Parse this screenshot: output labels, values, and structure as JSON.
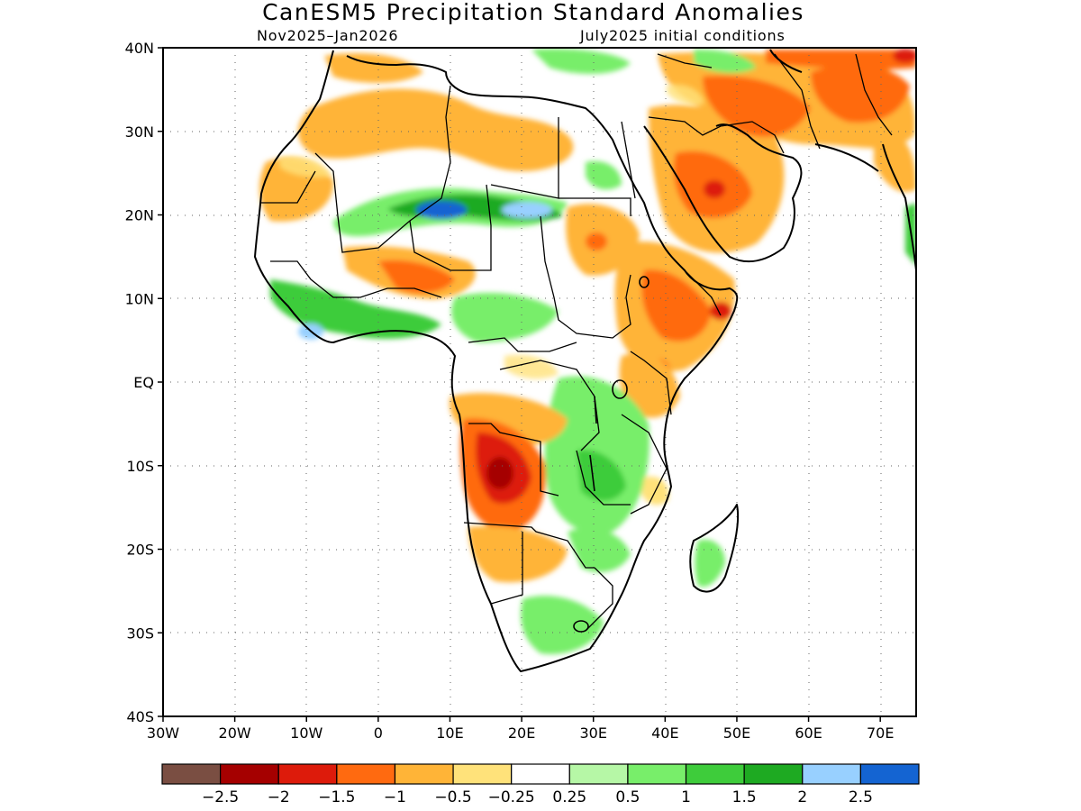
{
  "header": {
    "title": "CanESM5 Precipitation Standard Anomalies",
    "period": "Nov2025–Jan2026",
    "initial_conditions": "July2025 initial conditions"
  },
  "map": {
    "lon_range": [
      -30,
      75
    ],
    "lat_range": [
      -40,
      40
    ],
    "lat_ticks": [
      {
        "value": 40,
        "label": "40N"
      },
      {
        "value": 30,
        "label": "30N"
      },
      {
        "value": 20,
        "label": "20N"
      },
      {
        "value": 10,
        "label": "10N"
      },
      {
        "value": 0,
        "label": "EQ"
      },
      {
        "value": -10,
        "label": "10S"
      },
      {
        "value": -20,
        "label": "20S"
      },
      {
        "value": -30,
        "label": "30S"
      },
      {
        "value": -40,
        "label": "40S"
      }
    ],
    "lon_ticks": [
      {
        "value": -30,
        "label": "30W"
      },
      {
        "value": -20,
        "label": "20W"
      },
      {
        "value": -10,
        "label": "10W"
      },
      {
        "value": 0,
        "label": "0"
      },
      {
        "value": 10,
        "label": "10E"
      },
      {
        "value": 20,
        "label": "20E"
      },
      {
        "value": 30,
        "label": "30E"
      },
      {
        "value": 40,
        "label": "40E"
      },
      {
        "value": 50,
        "label": "50E"
      },
      {
        "value": 60,
        "label": "60E"
      },
      {
        "value": 70,
        "label": "70E"
      }
    ],
    "grid": true
  },
  "legend": {
    "colors": [
      "#7a4e42",
      "#a50000",
      "#dd1b0b",
      "#ff6a10",
      "#ffb437",
      "#ffe27a",
      "#ffffff",
      "#b6f7a6",
      "#78ee6a",
      "#3ecc3b",
      "#1eaa22",
      "#98d0ff",
      "#1464d2"
    ],
    "labels": [
      "−2.5",
      "−2",
      "−1.5",
      "−1",
      "−0.5",
      "−0.25",
      "0.25",
      "0.5",
      "1",
      "1.5",
      "2",
      "2.5"
    ]
  },
  "colors": {
    "dry_strong": "#ff6a10",
    "dry": "#ffb437",
    "wet": "#78ee6a",
    "very_wet": "#1464d2"
  }
}
